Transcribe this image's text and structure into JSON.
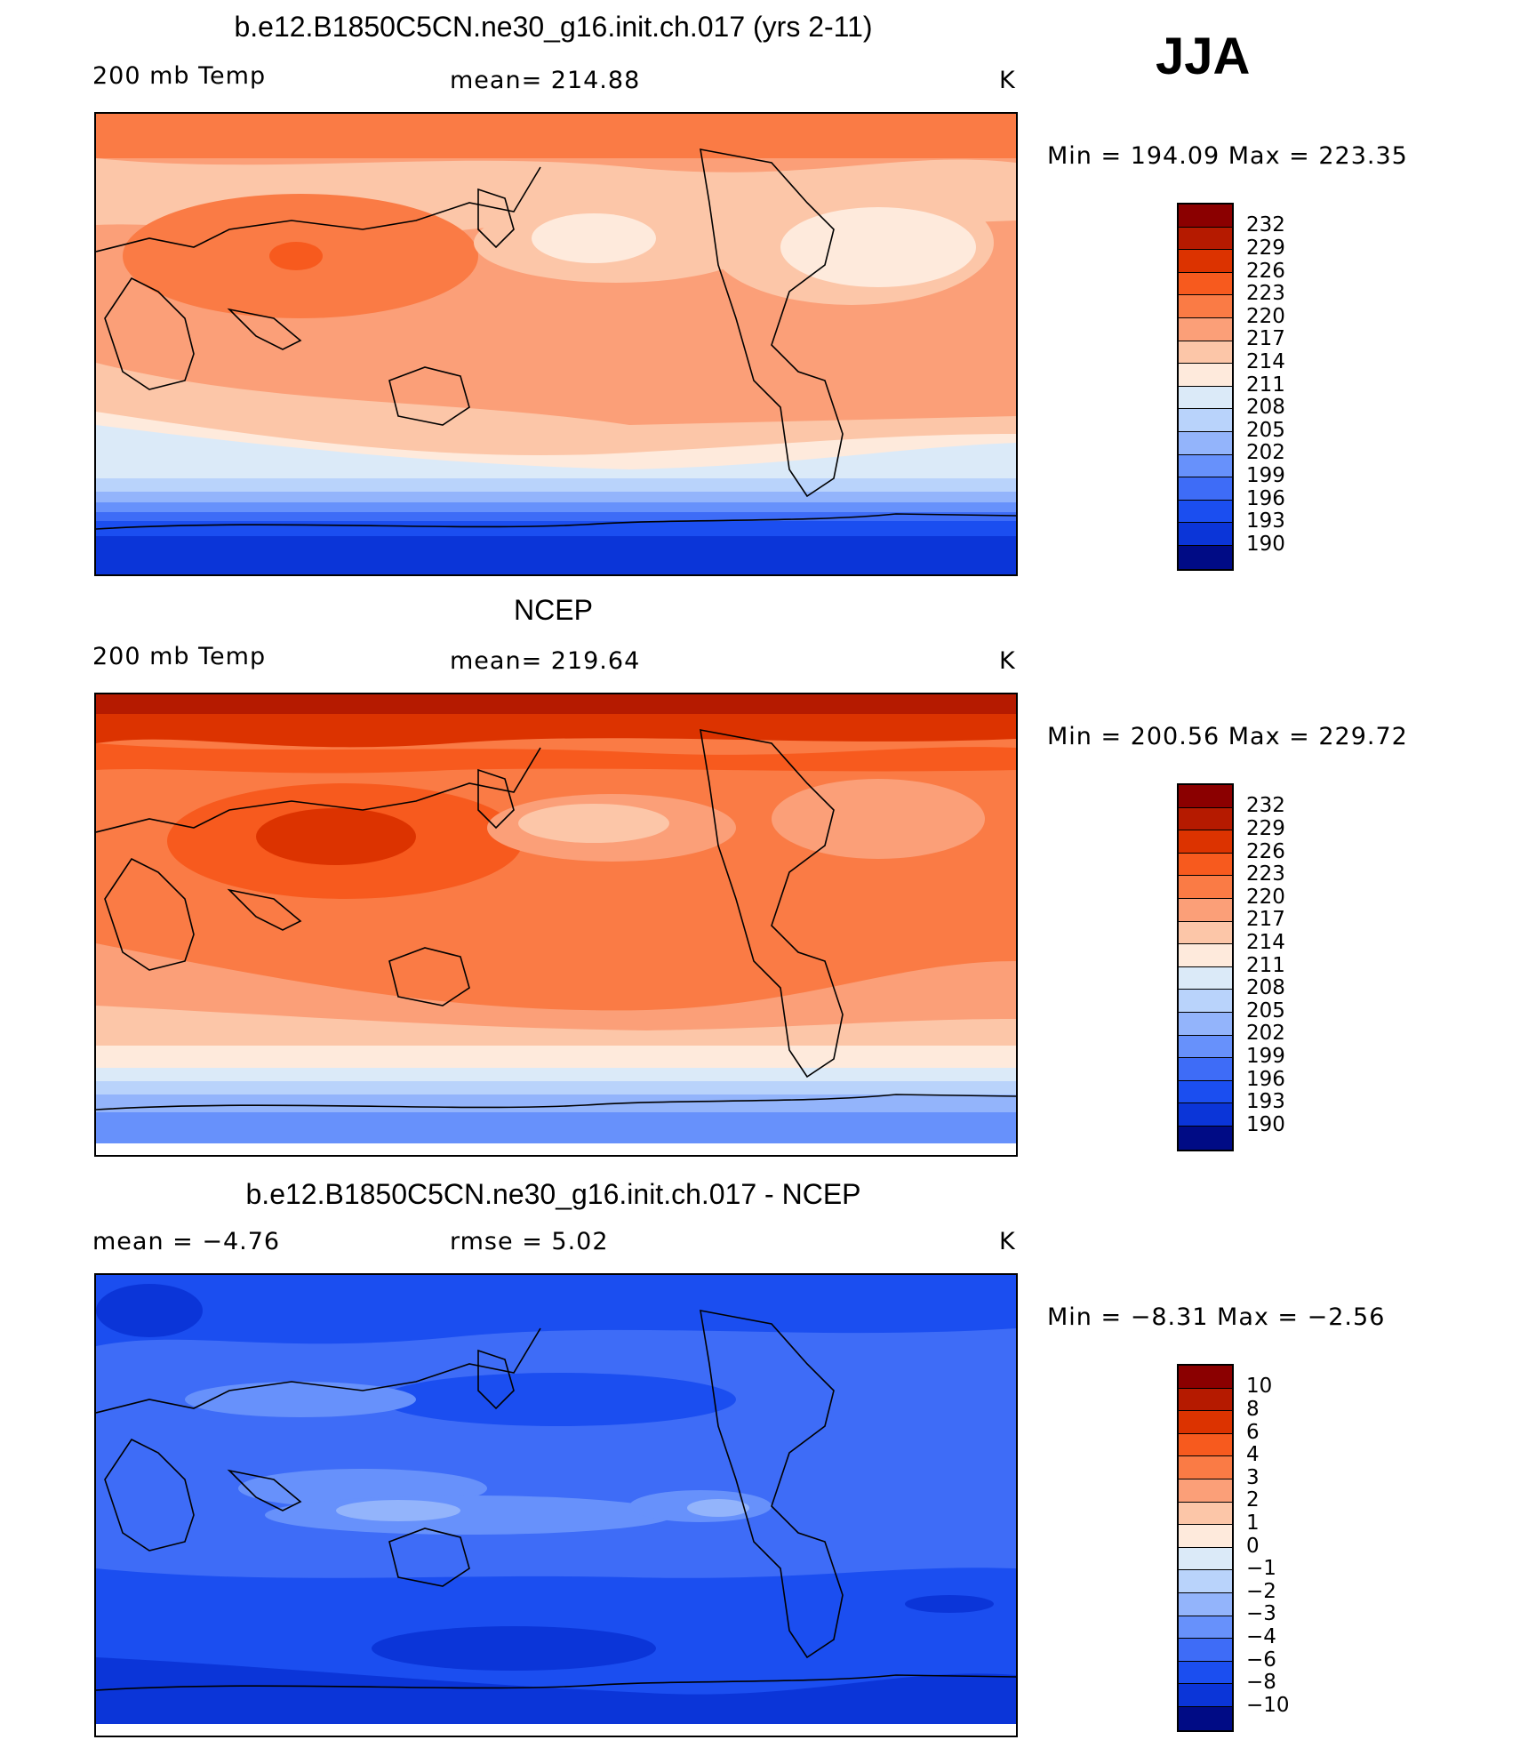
{
  "season": "JJA",
  "panels": [
    {
      "title": "b.e12.B1850C5CN.ne30_g16.init.ch.017 (yrs 2-11)",
      "left_label": "200 mb Temp",
      "mid_label": "mean=  214.88",
      "units": "K",
      "minmax": "Min  =  194.09  Max  =  223.35",
      "colorbar_labels": [
        "232",
        "229",
        "226",
        "223",
        "220",
        "217",
        "214",
        "211",
        "208",
        "205",
        "202",
        "199",
        "196",
        "193",
        "190"
      ],
      "map_name": "model-temperature-map"
    },
    {
      "title": "NCEP",
      "left_label": "200 mb Temp",
      "mid_label": "mean=  219.64",
      "units": "K",
      "minmax": "Min  =  200.56  Max  =  229.72",
      "colorbar_labels": [
        "232",
        "229",
        "226",
        "223",
        "220",
        "217",
        "214",
        "211",
        "208",
        "205",
        "202",
        "199",
        "196",
        "193",
        "190"
      ],
      "map_name": "ncep-temperature-map"
    },
    {
      "title": "b.e12.B1850C5CN.ne30_g16.init.ch.017 - NCEP",
      "left_label": "mean  =    −4.76",
      "mid_label": "rmse  =     5.02",
      "units": "K",
      "minmax": "Min  =   −8.31  Max  =   −2.56",
      "colorbar_labels": [
        "10",
        "8",
        "6",
        "4",
        "3",
        "2",
        "1",
        "0",
        "−1",
        "−2",
        "−3",
        "−4",
        "−6",
        "−8",
        "−10"
      ],
      "map_name": "difference-temperature-map"
    }
  ],
  "colors": {
    "scale": [
      "#8b0000",
      "#b51a00",
      "#dc3300",
      "#f75a1e",
      "#fa7b45",
      "#fb9f78",
      "#fcc6a8",
      "#feeadc",
      "#dbeaf8",
      "#b9d3fb",
      "#93b4fb",
      "#6791fb",
      "#3e6cf7",
      "#1b4ef0",
      "#0b35d8",
      "#04229d",
      "#000b85"
    ]
  }
}
